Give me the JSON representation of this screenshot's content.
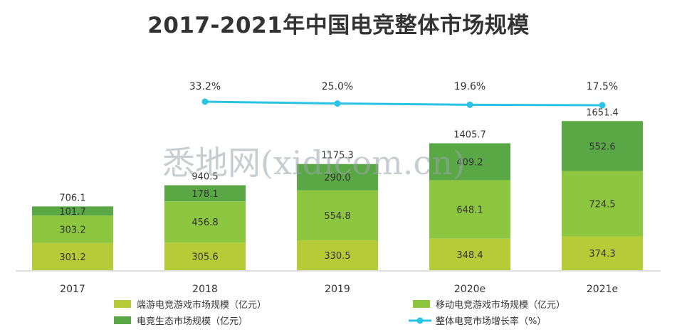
{
  "chart_data": {
    "type": "bar",
    "title": "2017-2021年中国电竞整体市场规模",
    "categories": [
      "2017",
      "2018",
      "2019",
      "2020e",
      "2021e"
    ],
    "series": [
      {
        "name": "端游电竞游戏市场规模（亿元）",
        "values": [
          301.2,
          305.6,
          330.5,
          348.4,
          374.3
        ],
        "color": "#b5cc38"
      },
      {
        "name": "移动电竞游戏市场规模（亿元）",
        "values": [
          303.2,
          456.8,
          554.8,
          648.1,
          724.5
        ],
        "color": "#8dc63f"
      },
      {
        "name": "电竞生态市场规模（亿元）",
        "values": [
          101.7,
          178.1,
          290.0,
          409.2,
          552.6
        ],
        "color": "#5aa845"
      }
    ],
    "totals": [
      706.1,
      940.5,
      1175.3,
      1405.7,
      1651.4
    ],
    "line_series": {
      "name": "整体电竞市场增长率（%）",
      "categories": [
        "2018",
        "2019",
        "2020e",
        "2021e"
      ],
      "values": [
        33.2,
        25.0,
        19.6,
        17.5
      ],
      "labels": [
        "33.2%",
        "25.0%",
        "19.6%",
        "17.5%"
      ],
      "color": "#29c3e6"
    },
    "stacked": true,
    "grid": false,
    "legend_position": "bottom"
  },
  "watermark": "悉地网(xidicom.cn)"
}
